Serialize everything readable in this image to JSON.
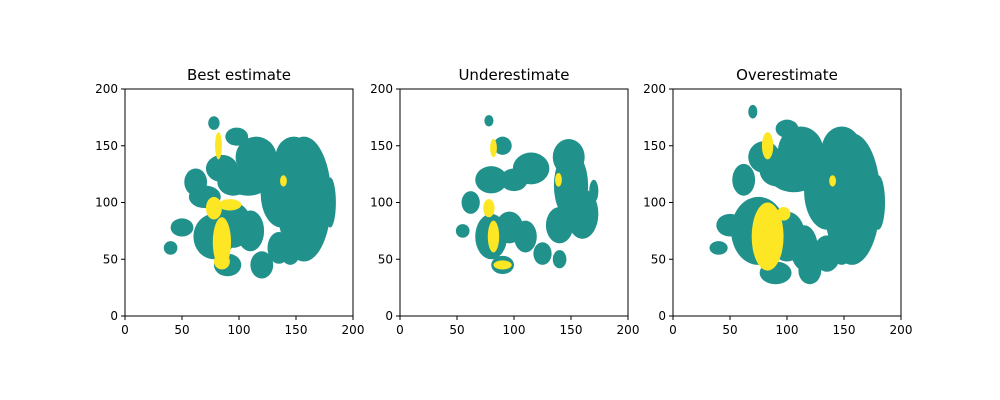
{
  "chart_data": [
    {
      "type": "heatmap",
      "title": "Best estimate",
      "xlim": [
        0,
        200
      ],
      "ylim": [
        0,
        200
      ],
      "xticks": [
        "0",
        "50",
        "100",
        "150",
        "200"
      ],
      "yticks": [
        "0",
        "50",
        "100",
        "150",
        "200"
      ],
      "grid": false,
      "colors": {
        "region": "#21918c",
        "core": "#fde725"
      },
      "region_blobs": [
        [
          157,
          103,
          24,
          55
        ],
        [
          137,
          108,
          18,
          30
        ],
        [
          148,
          140,
          16,
          18
        ],
        [
          115,
          140,
          18,
          18
        ],
        [
          108,
          120,
          20,
          14
        ],
        [
          95,
          118,
          14,
          12
        ],
        [
          85,
          130,
          14,
          12
        ],
        [
          98,
          158,
          10,
          8
        ],
        [
          78,
          170,
          5,
          6
        ],
        [
          62,
          118,
          10,
          12
        ],
        [
          70,
          105,
          14,
          10
        ],
        [
          78,
          70,
          18,
          20
        ],
        [
          95,
          80,
          16,
          20
        ],
        [
          110,
          75,
          12,
          18
        ],
        [
          135,
          60,
          10,
          14
        ],
        [
          145,
          55,
          8,
          10
        ],
        [
          120,
          45,
          10,
          12
        ],
        [
          90,
          45,
          12,
          10
        ],
        [
          50,
          78,
          10,
          8
        ],
        [
          40,
          60,
          6,
          6
        ],
        [
          180,
          100,
          5,
          22
        ]
      ],
      "core_blobs": [
        [
          85,
          65,
          8,
          22
        ],
        [
          78,
          95,
          7,
          10
        ],
        [
          92,
          98,
          10,
          5
        ],
        [
          85,
          48,
          7,
          7
        ],
        [
          82,
          150,
          3,
          12
        ],
        [
          139,
          119,
          3,
          5
        ]
      ]
    },
    {
      "type": "heatmap",
      "title": "Underestimate",
      "xlim": [
        0,
        200
      ],
      "ylim": [
        0,
        200
      ],
      "xticks": [
        "0",
        "50",
        "100",
        "150",
        "200"
      ],
      "yticks": [
        "0",
        "50",
        "100",
        "150",
        "200"
      ],
      "grid": false,
      "colors": {
        "region": "#21918c",
        "core": "#fde725"
      },
      "region_blobs": [
        [
          150,
          115,
          15,
          30
        ],
        [
          160,
          90,
          14,
          22
        ],
        [
          140,
          80,
          12,
          16
        ],
        [
          148,
          140,
          14,
          16
        ],
        [
          115,
          130,
          16,
          14
        ],
        [
          100,
          120,
          12,
          10
        ],
        [
          80,
          120,
          14,
          12
        ],
        [
          90,
          150,
          8,
          8
        ],
        [
          78,
          172,
          4,
          5
        ],
        [
          80,
          70,
          14,
          20
        ],
        [
          96,
          78,
          12,
          14
        ],
        [
          110,
          70,
          10,
          14
        ],
        [
          125,
          55,
          8,
          10
        ],
        [
          140,
          50,
          6,
          8
        ],
        [
          90,
          45,
          10,
          8
        ],
        [
          62,
          100,
          8,
          10
        ],
        [
          55,
          75,
          6,
          6
        ],
        [
          170,
          110,
          4,
          10
        ]
      ],
      "core_blobs": [
        [
          82,
          70,
          5,
          14
        ],
        [
          78,
          95,
          5,
          8
        ],
        [
          90,
          45,
          8,
          4
        ],
        [
          82,
          148,
          3,
          8
        ],
        [
          139,
          120,
          3,
          6
        ]
      ]
    },
    {
      "type": "heatmap",
      "title": "Overestimate",
      "xlim": [
        0,
        200
      ],
      "ylim": [
        0,
        200
      ],
      "xticks": [
        "0",
        "50",
        "100",
        "150",
        "200"
      ],
      "yticks": [
        "0",
        "50",
        "100",
        "150",
        "200"
      ],
      "grid": false,
      "colors": {
        "region": "#21918c",
        "core": "#fde725"
      },
      "region_blobs": [
        [
          157,
          103,
          25,
          58
        ],
        [
          135,
          110,
          20,
          34
        ],
        [
          148,
          145,
          18,
          22
        ],
        [
          112,
          145,
          20,
          22
        ],
        [
          106,
          125,
          22,
          16
        ],
        [
          92,
          128,
          16,
          14
        ],
        [
          80,
          140,
          14,
          14
        ],
        [
          100,
          165,
          10,
          8
        ],
        [
          62,
          120,
          10,
          14
        ],
        [
          75,
          75,
          24,
          30
        ],
        [
          100,
          70,
          16,
          22
        ],
        [
          115,
          60,
          12,
          20
        ],
        [
          135,
          55,
          12,
          16
        ],
        [
          148,
          55,
          8,
          10
        ],
        [
          120,
          40,
          10,
          12
        ],
        [
          90,
          38,
          14,
          10
        ],
        [
          50,
          80,
          12,
          10
        ],
        [
          40,
          60,
          8,
          6
        ],
        [
          180,
          100,
          6,
          24
        ],
        [
          70,
          180,
          4,
          6
        ]
      ],
      "core_blobs": [
        [
          83,
          70,
          14,
          30
        ],
        [
          97,
          90,
          6,
          6
        ],
        [
          83,
          150,
          5,
          12
        ],
        [
          140,
          119,
          3,
          5
        ]
      ]
    }
  ]
}
